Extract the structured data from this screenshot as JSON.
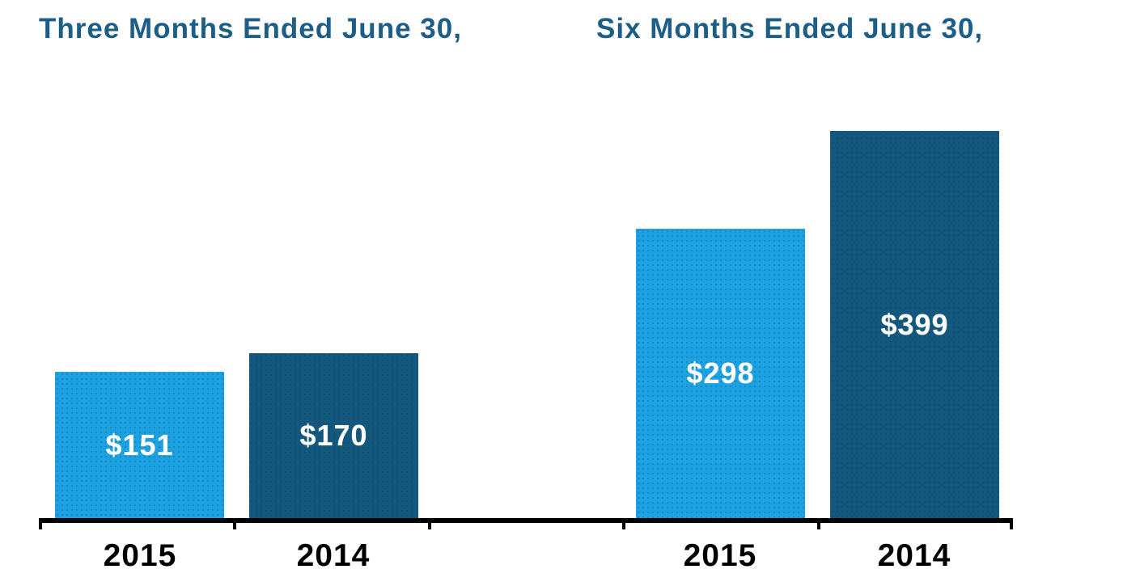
{
  "chart_data": {
    "type": "bar",
    "groups": [
      {
        "title": "Three Months Ended June 30,",
        "categories": [
          "2015",
          "2014"
        ],
        "values": [
          151,
          170
        ],
        "labels": [
          "$151",
          "$170"
        ]
      },
      {
        "title": "Six Months Ended June 30,",
        "categories": [
          "2015",
          "2014"
        ],
        "values": [
          298,
          399
        ],
        "labels": [
          "$298",
          "$399"
        ]
      }
    ],
    "series_colors": {
      "2015": "#1CA2E4",
      "2014": "#14587F"
    },
    "title_color": "#1C5E88",
    "axis_color": "#000000",
    "value_prefix": "$",
    "ylim": [
      0,
      400
    ],
    "grid": false,
    "legend": "none",
    "value_label_color": "#FFFFFF"
  }
}
